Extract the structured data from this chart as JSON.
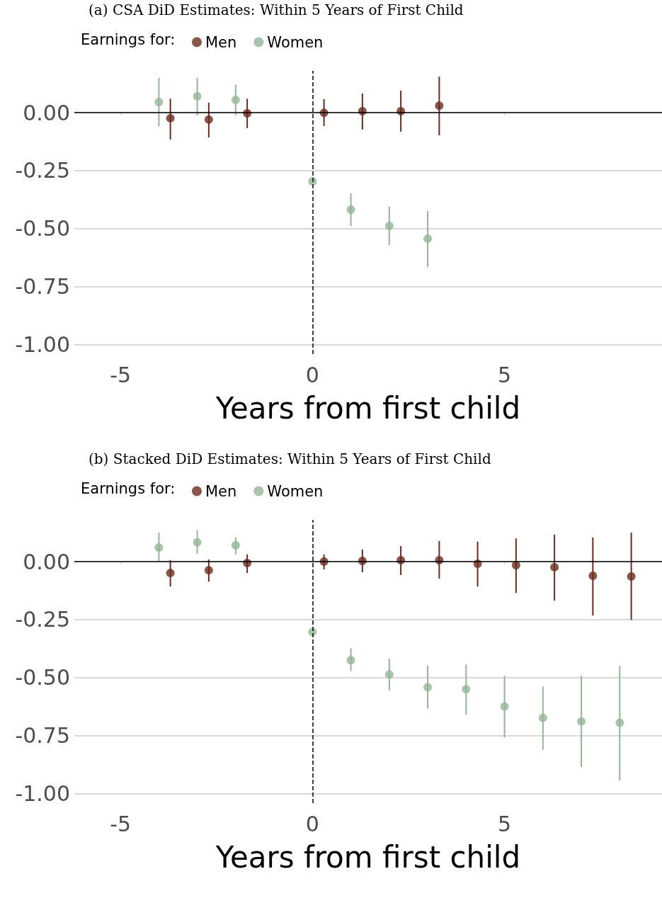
{
  "chart_data": [
    {
      "type": "scatter",
      "title": "(a) CSA DiD Estimates: Within 5 Years of First Child",
      "xlabel": "Years from first child",
      "legend_title": "Earnings for:",
      "legend": "top left",
      "grid": "y",
      "marker": "circle",
      "xlim": [
        -6.2,
        9.1
      ],
      "xticks": [
        -5,
        0,
        5
      ],
      "ylim": [
        -1.04,
        0.18
      ],
      "yticks": [
        {
          "value": 0,
          "label": "0.00"
        },
        {
          "value": -0.25,
          "label": "-0.25"
        },
        {
          "value": -0.5,
          "label": "-0.50"
        },
        {
          "value": -0.75,
          "label": "-0.75"
        },
        {
          "value": -1,
          "label": "-1.00"
        }
      ],
      "ref_lines": [
        {
          "axis": "y",
          "value": 0,
          "color": "#000000",
          "line_style": "solid"
        },
        {
          "axis": "x",
          "value": 0,
          "color": "#000000",
          "line_style": "dashed"
        }
      ],
      "series": [
        {
          "name": "Men",
          "color": "#6b2c1e",
          "x": [
            -3.7,
            -2.7,
            -1.7,
            0.3,
            1.3,
            2.3,
            3.3
          ],
          "values": [
            -0.024,
            -0.03,
            -0.003,
            -0.001,
            0.006,
            0.006,
            0.03
          ],
          "errors": [
            [
              -0.116,
              0.06
            ],
            [
              -0.107,
              0.043
            ],
            [
              -0.067,
              0.06
            ],
            [
              -0.058,
              0.058
            ],
            [
              -0.073,
              0.082
            ],
            [
              -0.082,
              0.095
            ],
            [
              -0.098,
              0.155
            ]
          ]
        },
        {
          "name": "Women",
          "color": "#94b596",
          "x": [
            -4,
            -3,
            -2,
            0,
            1,
            2,
            3
          ],
          "values": [
            0.046,
            0.07,
            0.055,
            -0.296,
            -0.418,
            -0.488,
            -0.543
          ],
          "errors": [
            [
              -0.06,
              0.15
            ],
            [
              -0.012,
              0.15
            ],
            [
              -0.012,
              0.12
            ],
            null,
            [
              -0.488,
              -0.348
            ],
            [
              -0.57,
              -0.405
            ],
            [
              -0.665,
              -0.424
            ]
          ]
        }
      ]
    },
    {
      "type": "scatter",
      "title": "(b) Stacked DiD Estimates: Within 5 Years of First Child",
      "xlabel": "Years from first child",
      "legend_title": "Earnings for:",
      "legend": "top left",
      "grid": "y",
      "marker": "circle",
      "xlim": [
        -6.2,
        9.1
      ],
      "xticks": [
        -5,
        0,
        5
      ],
      "ylim": [
        -1.04,
        0.18
      ],
      "yticks": [
        {
          "value": 0,
          "label": "0.00"
        },
        {
          "value": -0.25,
          "label": "-0.25"
        },
        {
          "value": -0.5,
          "label": "-0.50"
        },
        {
          "value": -0.75,
          "label": "-0.75"
        },
        {
          "value": -1,
          "label": "-1.00"
        }
      ],
      "ref_lines": [
        {
          "axis": "y",
          "value": 0,
          "color": "#000000",
          "line_style": "solid"
        },
        {
          "axis": "x",
          "value": 0,
          "color": "#000000",
          "line_style": "dashed"
        }
      ],
      "series": [
        {
          "name": "Men",
          "color": "#6b2c1e",
          "x": [
            -3.7,
            -2.7,
            -1.7,
            0.3,
            1.3,
            2.3,
            3.3,
            4.3,
            5.3,
            6.3,
            7.3,
            8.3
          ],
          "values": [
            -0.049,
            -0.037,
            -0.006,
            0,
            0.003,
            0.006,
            0.006,
            -0.009,
            -0.015,
            -0.024,
            -0.061,
            -0.064
          ],
          "errors": [
            [
              -0.107,
              0.006
            ],
            [
              -0.086,
              0.009
            ],
            [
              -0.049,
              0.031
            ],
            [
              -0.034,
              0.031
            ],
            [
              -0.046,
              0.052
            ],
            [
              -0.058,
              0.067
            ],
            [
              -0.073,
              0.089
            ],
            [
              -0.107,
              0.086
            ],
            [
              -0.135,
              0.1
            ],
            [
              -0.168,
              0.116
            ],
            [
              -0.232,
              0.104
            ],
            [
              -0.251,
              0.125
            ]
          ]
        },
        {
          "name": "Women",
          "color": "#94b596",
          "x": [
            -4,
            -3,
            -2,
            0,
            1,
            2,
            3,
            4,
            5,
            6,
            7,
            8
          ],
          "values": [
            0.061,
            0.083,
            0.07,
            -0.303,
            -0.425,
            -0.486,
            -0.541,
            -0.55,
            -0.624,
            -0.673,
            -0.688,
            -0.694
          ],
          "errors": [
            [
              0,
              0.125
            ],
            [
              0.034,
              0.135
            ],
            [
              0.031,
              0.104
            ],
            null,
            [
              -0.471,
              -0.373
            ],
            [
              -0.554,
              -0.419
            ],
            [
              -0.633,
              -0.447
            ],
            [
              -0.66,
              -0.443
            ],
            [
              -0.758,
              -0.492
            ],
            [
              -0.81,
              -0.538
            ],
            [
              -0.884,
              -0.492
            ],
            [
              -0.942,
              -0.449
            ]
          ]
        }
      ]
    }
  ]
}
